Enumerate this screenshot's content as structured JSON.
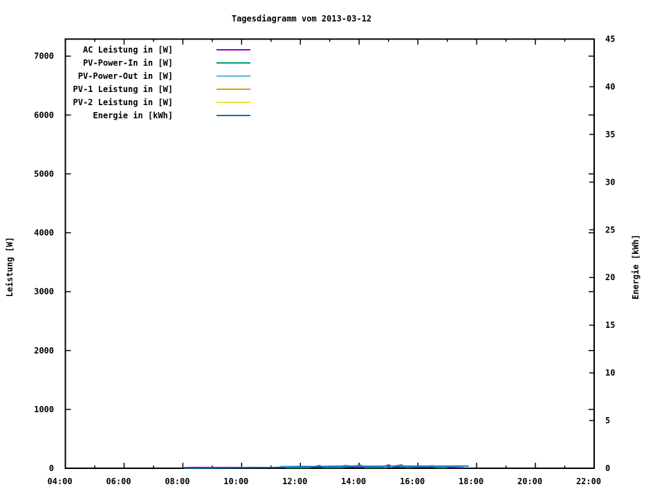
{
  "title": "Tagesdiagramm vom 2013-03-12",
  "chart_data": {
    "type": "line",
    "title": "Tagesdiagramm vom 2013-03-12",
    "grid": false,
    "background": "#ffffff",
    "border_color": "#000000",
    "legend_position": "top-left-inside",
    "x_axis": {
      "unit": "time",
      "range_hours": [
        4,
        22
      ],
      "ticks_major": [
        {
          "t": 4,
          "label": "04:00"
        },
        {
          "t": 6,
          "label": "06:00"
        },
        {
          "t": 8,
          "label": "08:00"
        },
        {
          "t": 10,
          "label": "10:00"
        },
        {
          "t": 12,
          "label": "12:00"
        },
        {
          "t": 14,
          "label": "14:00"
        },
        {
          "t": 16,
          "label": "16:00"
        },
        {
          "t": 18,
          "label": "18:00"
        },
        {
          "t": 20,
          "label": "20:00"
        },
        {
          "t": 22,
          "label": "22:00"
        }
      ],
      "ticks_minor_hours": [
        5,
        7,
        9,
        11,
        13,
        15,
        17,
        19,
        21
      ]
    },
    "y_axis_left": {
      "label": "Leistung [W]",
      "range": [
        0,
        7290
      ],
      "ticks": [
        {
          "v": 0,
          "label": "0"
        },
        {
          "v": 1000,
          "label": "1000"
        },
        {
          "v": 2000,
          "label": "2000"
        },
        {
          "v": 3000,
          "label": "3000"
        },
        {
          "v": 4000,
          "label": "4000"
        },
        {
          "v": 5000,
          "label": "5000"
        },
        {
          "v": 6000,
          "label": "6000"
        },
        {
          "v": 7000,
          "label": "7000"
        }
      ]
    },
    "y_axis_right": {
      "label": "Energie [kWh]",
      "range": [
        0,
        45
      ],
      "ticks": [
        {
          "v": 0,
          "label": "0"
        },
        {
          "v": 5,
          "label": "5"
        },
        {
          "v": 10,
          "label": "10"
        },
        {
          "v": 15,
          "label": "15"
        },
        {
          "v": 20,
          "label": "20"
        },
        {
          "v": 25,
          "label": "25"
        },
        {
          "v": 30,
          "label": "30"
        },
        {
          "v": 35,
          "label": "35"
        },
        {
          "v": 40,
          "label": "40"
        },
        {
          "v": 45,
          "label": "45"
        }
      ]
    },
    "series": [
      {
        "name": "AC Leistung in [W]",
        "color": "#9400D3",
        "axis": "left",
        "points": [
          [
            8.05,
            15
          ],
          [
            8.5,
            16
          ],
          [
            9,
            15
          ],
          [
            9.5,
            16
          ],
          [
            10,
            15
          ],
          [
            10.5,
            16
          ],
          [
            11,
            14
          ],
          [
            11.35,
            18
          ],
          [
            11.7,
            14
          ],
          [
            12,
            18
          ],
          [
            12.3,
            24
          ],
          [
            12.6,
            16
          ],
          [
            13,
            20
          ],
          [
            13.3,
            14
          ],
          [
            13.6,
            20
          ],
          [
            14,
            16
          ],
          [
            14.4,
            20
          ],
          [
            14.8,
            18
          ],
          [
            15.0,
            60
          ],
          [
            15.15,
            22
          ],
          [
            15.5,
            16
          ],
          [
            15.9,
            20
          ],
          [
            16.3,
            16
          ],
          [
            16.7,
            26
          ],
          [
            16.9,
            18
          ],
          [
            17.2,
            14
          ],
          [
            17.55,
            10
          ]
        ]
      },
      {
        "name": "PV-Power-In in [W]",
        "color": "#009E73",
        "axis": "left",
        "points": [
          [
            11.5,
            8
          ],
          [
            12.3,
            8
          ],
          [
            12.65,
            50
          ],
          [
            12.8,
            10
          ],
          [
            13.4,
            10
          ],
          [
            14.05,
            55
          ],
          [
            14.2,
            12
          ],
          [
            14.9,
            10
          ],
          [
            15.45,
            60
          ],
          [
            15.6,
            12
          ],
          [
            16.5,
            45
          ],
          [
            16.65,
            10
          ],
          [
            17.0,
            8
          ]
        ]
      },
      {
        "name": "PV-Power-Out in [W]",
        "color": "#56B4E9",
        "axis": "left",
        "points": [
          [
            11.3,
            34
          ],
          [
            11.8,
            34
          ],
          [
            12.5,
            30
          ],
          [
            13.4,
            40
          ],
          [
            13.55,
            55
          ],
          [
            13.7,
            40
          ],
          [
            14.5,
            32
          ],
          [
            15.5,
            36
          ],
          [
            16.5,
            32
          ],
          [
            17.73,
            30
          ]
        ]
      },
      {
        "name": "PV-1 Leistung in [W]",
        "color": "#E69F00",
        "axis": "left",
        "points": []
      },
      {
        "name": "PV-2 Leistung in [W]",
        "color": "#F0E442",
        "axis": "left",
        "points": []
      },
      {
        "name": "Energie in [kWh]",
        "color": "#0072B2",
        "axis": "right",
        "points": [
          [
            8.05,
            0.0
          ],
          [
            9,
            0.02
          ],
          [
            10,
            0.05
          ],
          [
            11,
            0.09
          ],
          [
            11.6,
            0.13
          ],
          [
            12,
            0.19
          ],
          [
            13,
            0.205
          ],
          [
            14,
            0.215
          ],
          [
            15,
            0.225
          ],
          [
            16,
            0.235
          ],
          [
            17,
            0.24
          ],
          [
            17.73,
            0.245
          ]
        ]
      }
    ]
  }
}
